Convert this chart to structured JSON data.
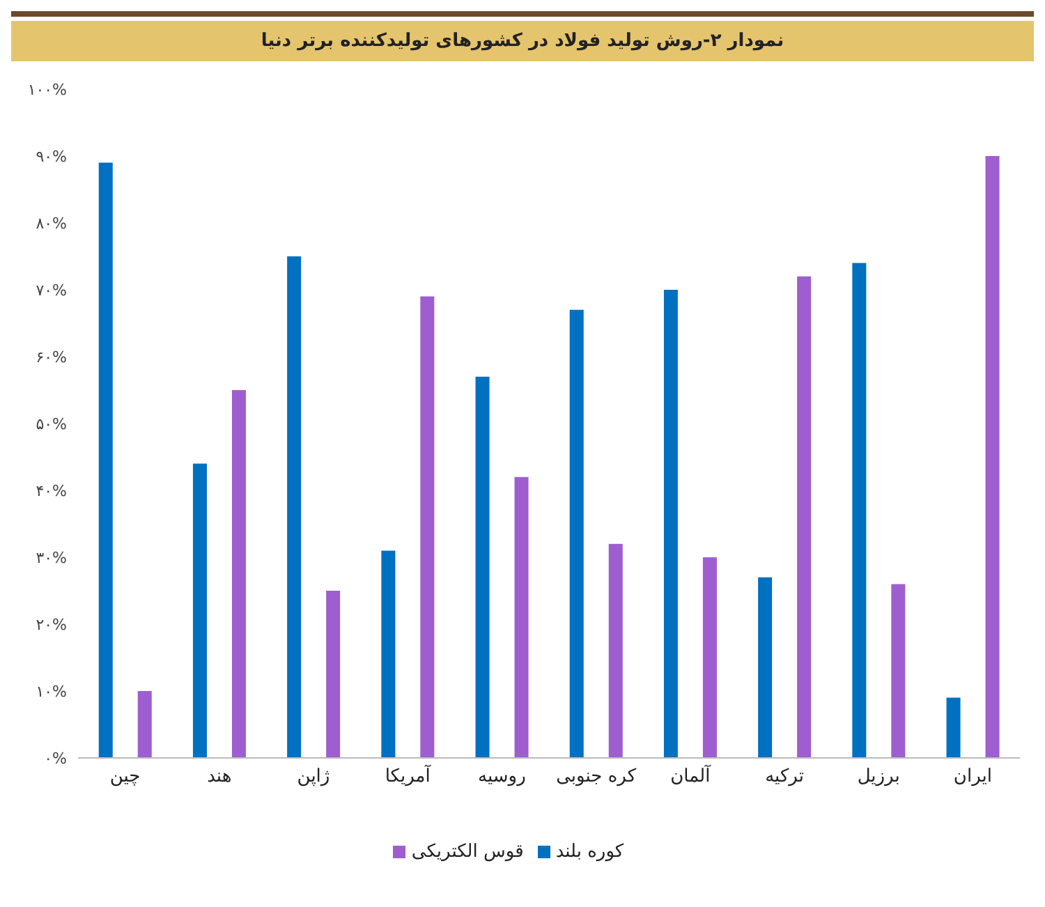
{
  "chart_data": {
    "type": "bar",
    "title": "نمودار ۲-روش تولید فولاد در کشورهای تولیدکننده برتر دنیا",
    "categories": [
      "چین",
      "هند",
      "ژاپن",
      "آمریکا",
      "روسیه",
      "کره جنوبی",
      "آلمان",
      "ترکیه",
      "برزیل",
      "ایران"
    ],
    "series": [
      {
        "name": "کوره بلند",
        "color": "#0070c0",
        "values": [
          89,
          44,
          75,
          31,
          57,
          67,
          70,
          27,
          74,
          9
        ]
      },
      {
        "name": "قوس الکتریکی",
        "color": "#9e5ecf",
        "values": [
          10,
          55,
          25,
          69,
          42,
          32,
          30,
          72,
          26,
          90
        ]
      }
    ],
    "ylim": [
      0,
      100
    ],
    "yticks": [
      {
        "value": 0,
        "label": "۰%"
      },
      {
        "value": 10,
        "label": "۱۰%"
      },
      {
        "value": 20,
        "label": "۲۰%"
      },
      {
        "value": 30,
        "label": "۳۰%"
      },
      {
        "value": 40,
        "label": "۴۰%"
      },
      {
        "value": 50,
        "label": "۵۰%"
      },
      {
        "value": 60,
        "label": "۶۰%"
      },
      {
        "value": 70,
        "label": "۷۰%"
      },
      {
        "value": 80,
        "label": "۸۰%"
      },
      {
        "value": 90,
        "label": "۹۰%"
      },
      {
        "value": 100,
        "label": "۱۰۰%"
      }
    ],
    "grid": false,
    "legend": "bottom"
  }
}
